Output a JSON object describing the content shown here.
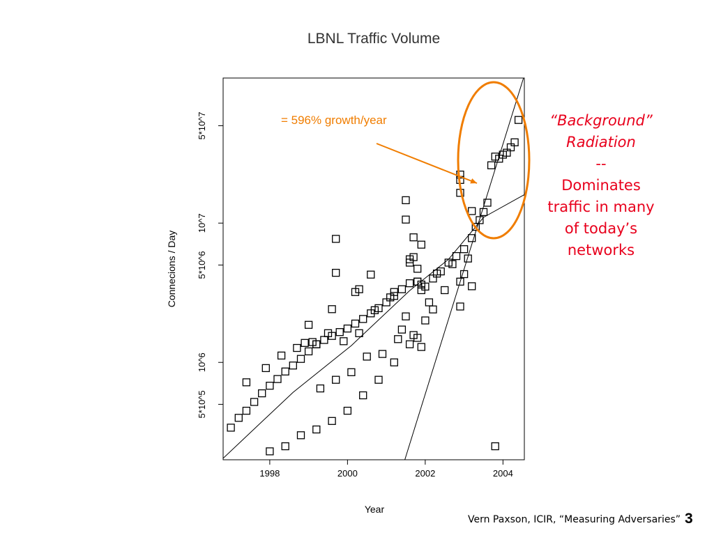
{
  "chart_data": {
    "type": "scatter",
    "title": "LBNL Traffic Volume",
    "xlabel": "Year",
    "ylabel": "Connecions / Day",
    "y_scale": "log",
    "xlim": [
      1996.8,
      2004.55
    ],
    "ylim": [
      200000,
      110000000
    ],
    "x_ticks": [
      {
        "value": 1998,
        "label": "1998"
      },
      {
        "value": 2000,
        "label": "2000"
      },
      {
        "value": 2002,
        "label": "2002"
      },
      {
        "value": 2004,
        "label": "2004"
      }
    ],
    "y_ticks": [
      {
        "value": 500000,
        "label": "5*10^5"
      },
      {
        "value": 1000000,
        "label": "10^6"
      },
      {
        "value": 5000000,
        "label": "5*10^6"
      },
      {
        "value": 10000000,
        "label": "10^7"
      },
      {
        "value": 50000000,
        "label": "5*10^7"
      }
    ],
    "grid": false,
    "series": [
      {
        "marker": "open-square",
        "points": [
          [
            1997.0,
            340000
          ],
          [
            1997.2,
            400000
          ],
          [
            1997.4,
            450000
          ],
          [
            1997.6,
            520000
          ],
          [
            1997.8,
            600000
          ],
          [
            1998.0,
            680000
          ],
          [
            1998.2,
            760000
          ],
          [
            1998.4,
            860000
          ],
          [
            1998.6,
            950000
          ],
          [
            1998.8,
            1060000
          ],
          [
            1999.0,
            1200000
          ],
          [
            1999.2,
            1350000
          ],
          [
            1999.4,
            1450000
          ],
          [
            1999.6,
            1550000
          ],
          [
            1999.8,
            1650000
          ],
          [
            2000.0,
            1750000
          ],
          [
            2000.2,
            1900000
          ],
          [
            2000.4,
            2050000
          ],
          [
            2000.6,
            2250000
          ],
          [
            2000.8,
            2450000
          ],
          [
            2001.0,
            2700000
          ],
          [
            2001.2,
            3000000
          ],
          [
            2001.4,
            3350000
          ],
          [
            2001.6,
            3700000
          ],
          [
            2001.8,
            3800000
          ],
          [
            2002.0,
            3500000
          ],
          [
            2002.2,
            4000000
          ],
          [
            2002.4,
            4500000
          ],
          [
            2002.6,
            5200000
          ],
          [
            2002.8,
            5800000
          ],
          [
            2003.0,
            6500000
          ],
          [
            2003.2,
            7800000
          ],
          [
            2003.4,
            10500000
          ],
          [
            2003.6,
            14000000
          ],
          [
            2003.7,
            26000000
          ],
          [
            2003.8,
            30000000
          ],
          [
            2003.9,
            29000000
          ],
          [
            2004.0,
            31000000
          ],
          [
            2004.1,
            32000000
          ],
          [
            2004.2,
            35000000
          ],
          [
            2004.3,
            38000000
          ],
          [
            2004.4,
            55000000
          ],
          [
            1998.0,
            230000
          ],
          [
            1998.4,
            250000
          ],
          [
            1998.8,
            300000
          ],
          [
            1999.2,
            330000
          ],
          [
            1999.6,
            380000
          ],
          [
            2000.0,
            450000
          ],
          [
            2000.4,
            580000
          ],
          [
            2000.8,
            750000
          ],
          [
            2001.2,
            1000000
          ],
          [
            2001.6,
            1350000
          ],
          [
            2001.8,
            1500000
          ],
          [
            2002.0,
            2000000
          ],
          [
            2002.2,
            2400000
          ],
          [
            1997.4,
            720000
          ],
          [
            1997.9,
            910000
          ],
          [
            1998.3,
            1120000
          ],
          [
            1998.7,
            1270000
          ],
          [
            1999.1,
            1400000
          ],
          [
            1999.5,
            1620000
          ],
          [
            1999.9,
            1420000
          ],
          [
            2000.3,
            1620000
          ],
          [
            2000.7,
            2370000
          ],
          [
            2001.1,
            2930000
          ],
          [
            2001.5,
            2140000
          ],
          [
            2001.9,
            3620000
          ],
          [
            2002.3,
            4340000
          ],
          [
            2002.7,
            5070000
          ],
          [
            2003.1,
            5570000
          ],
          [
            2003.3,
            9400000
          ],
          [
            2003.5,
            12000000
          ],
          [
            1999.3,
            650000
          ],
          [
            1999.7,
            750000
          ],
          [
            2000.1,
            850000
          ],
          [
            2000.5,
            1100000
          ],
          [
            2000.9,
            1150000
          ],
          [
            2001.3,
            1470000
          ],
          [
            2001.7,
            1570000
          ],
          [
            2002.1,
            2700000
          ],
          [
            2002.5,
            3300000
          ],
          [
            2002.9,
            3800000
          ],
          [
            2003.0,
            4300000
          ],
          [
            1998.9,
            1380000
          ],
          [
            1999.0,
            1860000
          ],
          [
            1999.6,
            2410000
          ],
          [
            1999.7,
            7700000
          ],
          [
            1999.7,
            4400000
          ],
          [
            2000.2,
            3200000
          ],
          [
            2000.3,
            3350000
          ],
          [
            2000.6,
            4270000
          ],
          [
            2001.6,
            5500000
          ],
          [
            2001.7,
            7900000
          ],
          [
            2001.7,
            5700000
          ],
          [
            2001.8,
            4700000
          ],
          [
            2001.8,
            3800000
          ],
          [
            2001.9,
            3300000
          ],
          [
            2001.9,
            7000000
          ],
          [
            2001.5,
            10600000
          ],
          [
            2001.5,
            14600000
          ],
          [
            2002.9,
            20400000
          ],
          [
            2002.9,
            22300000
          ],
          [
            2002.9,
            16500000
          ],
          [
            2003.2,
            12200000
          ],
          [
            2002.9,
            2520000
          ],
          [
            2003.2,
            3520000
          ],
          [
            2001.9,
            1290000
          ],
          [
            2001.4,
            1720000
          ],
          [
            2003.8,
            250000
          ],
          [
            1999.2,
            1350000
          ],
          [
            2001.6,
            5200000
          ],
          [
            2001.2,
            3200000
          ]
        ]
      }
    ],
    "fit_lines": [
      {
        "points": [
          [
            1996.8,
            205000
          ],
          [
            1998.6,
            610000
          ],
          [
            2000.1,
            1320000
          ],
          [
            2001.6,
            3280000
          ],
          [
            2002.6,
            5500000
          ],
          [
            2003.5,
            11000000
          ],
          [
            2004.55,
            16000000
          ]
        ]
      },
      {
        "points": [
          [
            2001.45,
            190000
          ],
          [
            2004.55,
            115000000
          ]
        ]
      }
    ]
  },
  "annotation_growth": "= 596% growth/year",
  "side_note": {
    "line1": "“Background”",
    "line2": "Radiation",
    "line3": "--",
    "line4": "Dominates",
    "line5": "traffic in many",
    "line6": "of today’s",
    "line7": "networks"
  },
  "footer": "Vern Paxson, ICIR, “Measuring Adversaries”",
  "slide_number": "3",
  "colors": {
    "annotation_orange": "#f07d00",
    "note_red": "#e8001c",
    "marker": "#000000"
  }
}
